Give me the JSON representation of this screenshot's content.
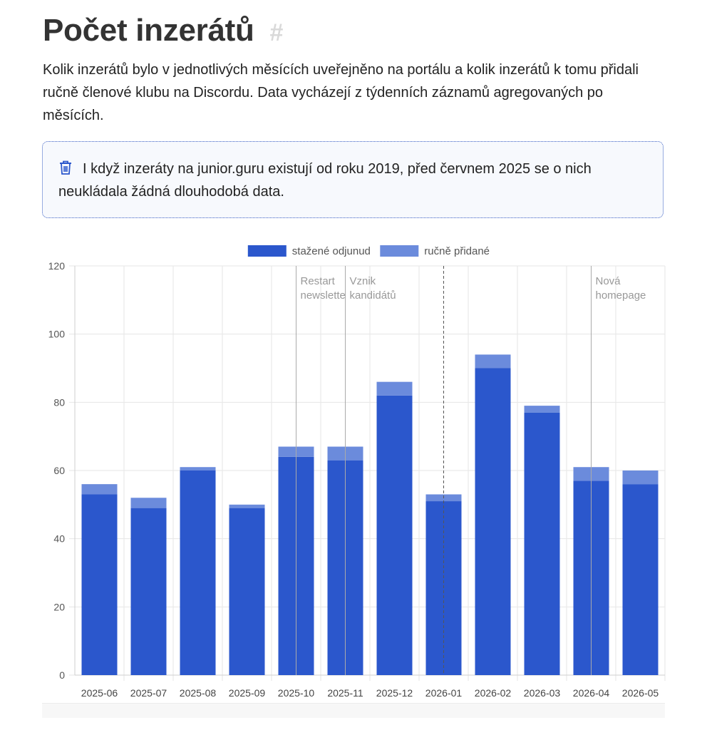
{
  "heading": {
    "title": "Počet inzerátů",
    "anchor": "#"
  },
  "intro": "Kolik inzerátů bylo v jednotlivých měsících uveřejněno na portálu a kolik inzerátů k tomu přidali ručně členové klubu na Discordu. Data vycházejí z týdenních záznamů agregovaných po měsících.",
  "notice": {
    "icon": "trash-icon",
    "text": "I když inzeráty na junior.guru existují od roku 2019, před červnem 2025 se o nich neukládala žádná dlouhodobá data."
  },
  "colors": {
    "scraped": "#2b57cc",
    "manual": "#6b8bdc",
    "accent": "#3a5fc4"
  },
  "chart_data": {
    "type": "bar",
    "stacked": true,
    "categories": [
      "2025-06",
      "2025-07",
      "2025-08",
      "2025-09",
      "2025-10",
      "2025-11",
      "2025-12",
      "2026-01",
      "2026-02",
      "2026-03",
      "2026-04",
      "2026-05"
    ],
    "series": [
      {
        "name": "stažené odjunud",
        "color": "#2b57cc",
        "values": [
          53,
          49,
          60,
          49,
          64,
          63,
          82,
          51,
          90,
          77,
          57,
          56
        ]
      },
      {
        "name": "ručně přidané",
        "color": "#6b8bdc",
        "values": [
          3,
          3,
          1,
          1,
          3,
          4,
          4,
          2,
          4,
          2,
          4,
          4
        ]
      }
    ],
    "ylim": [
      0,
      120
    ],
    "yticks": [
      0,
      20,
      40,
      60,
      80,
      100,
      120
    ],
    "grid": true,
    "legend": "top-center",
    "annotations": [
      {
        "category": "2025-10",
        "lines": [
          "Restart",
          "newslette"
        ],
        "style": "solid"
      },
      {
        "category": "2025-11",
        "lines": [
          "Vznik",
          "kandidátů"
        ],
        "style": "solid"
      },
      {
        "category": "2026-01",
        "lines": [],
        "style": "dashed"
      },
      {
        "category": "2026-04",
        "lines": [
          "Nová",
          "homepage"
        ],
        "style": "solid"
      }
    ]
  }
}
